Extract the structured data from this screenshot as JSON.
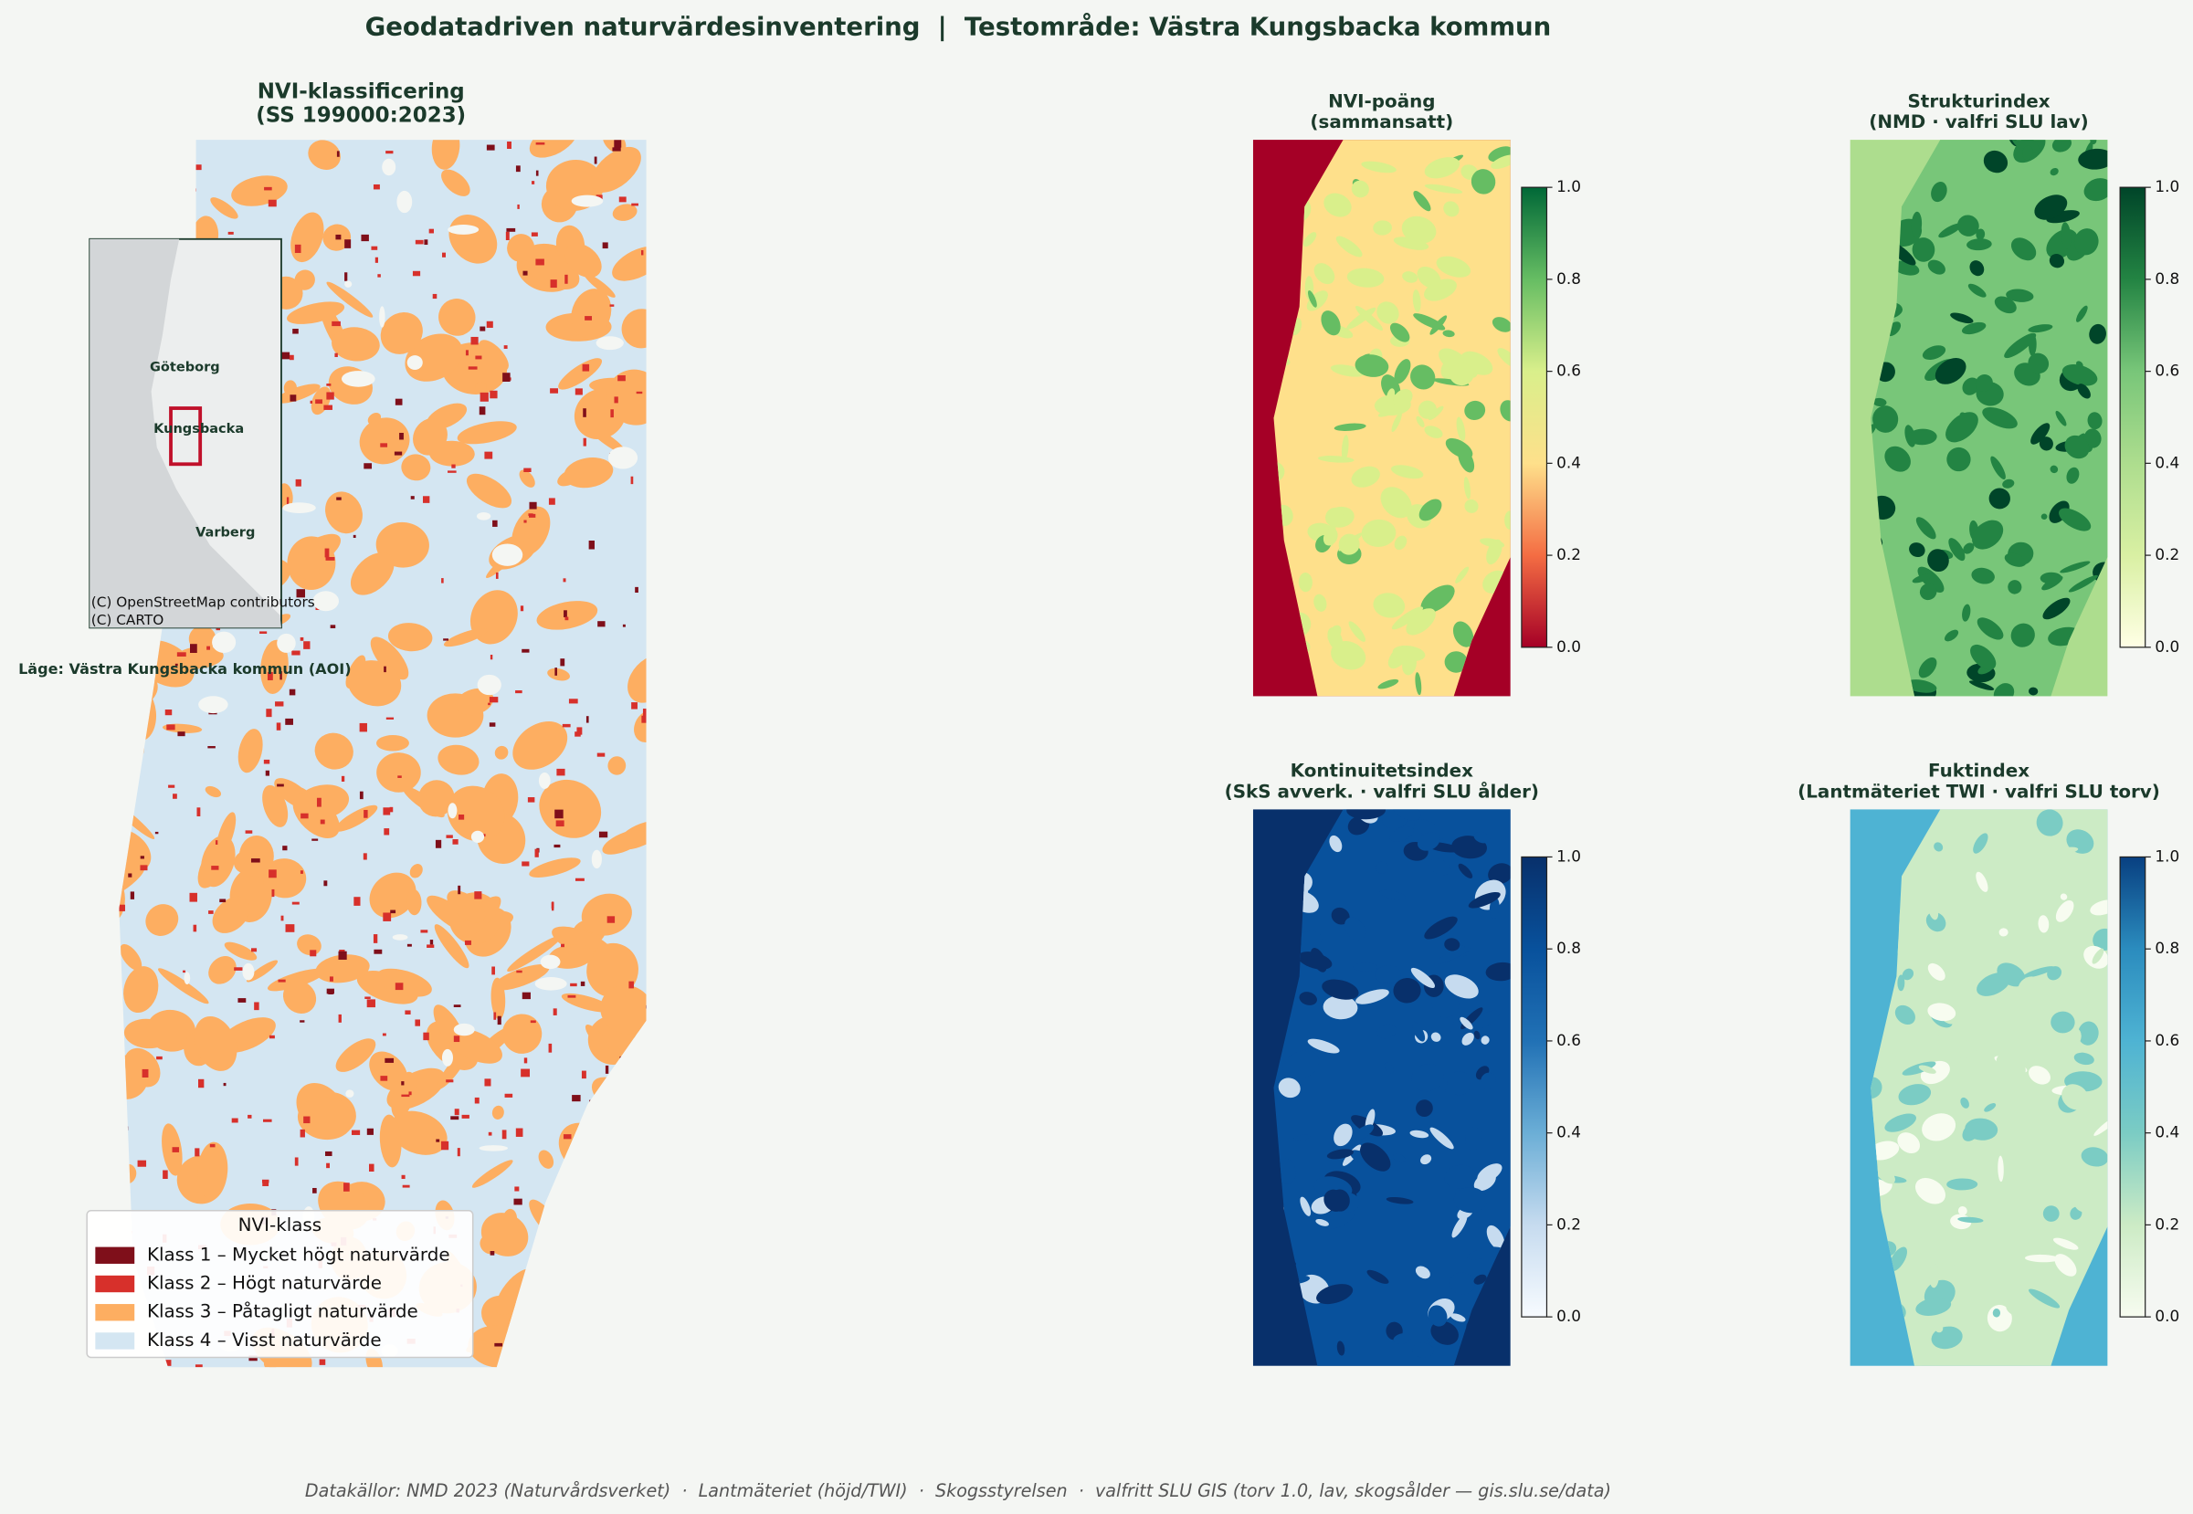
{
  "title": "Geodatadriven naturvärdesinventering  |  Testområde: Västra Kungsbacka kommun",
  "main_map": {
    "title": [
      "NVI-klassificering",
      "(SS 199000:2023)"
    ],
    "inset": {
      "places": [
        "Göteborg",
        "Kungsbacka",
        "Varberg"
      ],
      "attribution": [
        "(C) OpenStreetMap contributors",
        "(C) CARTO"
      ],
      "caption": "Läge: Västra Kungsbacka kommun (AOI)"
    },
    "legend": {
      "title": "NVI-klass",
      "entries": [
        {
          "name": "Klass 1 – Mycket högt naturvärde",
          "color": "#7f0f1a"
        },
        {
          "name": "Klass 2 – Högt naturvärde",
          "color": "#d7302b"
        },
        {
          "name": "Klass 3 – Påtagligt naturvärde",
          "color": "#fdae61"
        },
        {
          "name": "Klass 4 – Visst naturvärde",
          "color": "#d4e6f2"
        }
      ]
    }
  },
  "panels": [
    {
      "title": [
        "NVI-poäng",
        "(sammansatt)"
      ],
      "colormap": [
        "#a50026",
        "#f46d43",
        "#fee08b",
        "#d9ef8b",
        "#66bd63",
        "#006837"
      ],
      "clim": [
        0,
        1
      ],
      "ticks": [
        {
          "value": 0,
          "label": "0.0"
        },
        {
          "value": 0.2,
          "label": "0.2"
        },
        {
          "value": 0.4,
          "label": "0.4"
        },
        {
          "value": 0.6,
          "label": "0.6"
        },
        {
          "value": 0.8,
          "label": "0.8"
        },
        {
          "value": 1,
          "label": "1.0"
        }
      ]
    },
    {
      "title": [
        "Strukturindex",
        "(NMD · valfri SLU lav)"
      ],
      "colormap": [
        "#ffffe5",
        "#d9f0a3",
        "#addd8e",
        "#78c679",
        "#238443",
        "#004529"
      ],
      "clim": [
        0,
        1
      ],
      "ticks": [
        {
          "value": 0,
          "label": "0.0"
        },
        {
          "value": 0.2,
          "label": "0.2"
        },
        {
          "value": 0.4,
          "label": "0.4"
        },
        {
          "value": 0.6,
          "label": "0.6"
        },
        {
          "value": 0.8,
          "label": "0.8"
        },
        {
          "value": 1,
          "label": "1.0"
        }
      ]
    },
    {
      "title": [
        "Kontinuitetsindex",
        "(SkS avverk. · valfri SLU ålder)"
      ],
      "colormap": [
        "#f7fbff",
        "#c6dbef",
        "#6baed6",
        "#2171b5",
        "#08519c",
        "#08306b"
      ],
      "clim": [
        0,
        1
      ],
      "ticks": [
        {
          "value": 0,
          "label": "0.0"
        },
        {
          "value": 0.2,
          "label": "0.2"
        },
        {
          "value": 0.4,
          "label": "0.4"
        },
        {
          "value": 0.6,
          "label": "0.6"
        },
        {
          "value": 0.8,
          "label": "0.8"
        },
        {
          "value": 1,
          "label": "1.0"
        }
      ]
    },
    {
      "title": [
        "Fuktindex",
        "(Lantmäteriet TWI · valfri SLU torv)"
      ],
      "colormap": [
        "#f7fcf0",
        "#ccebc5",
        "#7bccc4",
        "#4eb3d3",
        "#2b8cbe",
        "#084081"
      ],
      "clim": [
        0,
        1
      ],
      "ticks": [
        {
          "value": 0,
          "label": "0.0"
        },
        {
          "value": 0.2,
          "label": "0.2"
        },
        {
          "value": 0.4,
          "label": "0.4"
        },
        {
          "value": 0.6,
          "label": "0.6"
        },
        {
          "value": 0.8,
          "label": "0.8"
        },
        {
          "value": 1,
          "label": "1.0"
        }
      ]
    }
  ],
  "footer": "Datakällor: NMD 2023 (Naturvårdsverket)  ·  Lantmäteriet (höjd/TWI)  ·  Skogsstyrelsen  ·  valfritt SLU GIS (torv 1.0, lav, skogsålder — gis.slu.se/data)"
}
